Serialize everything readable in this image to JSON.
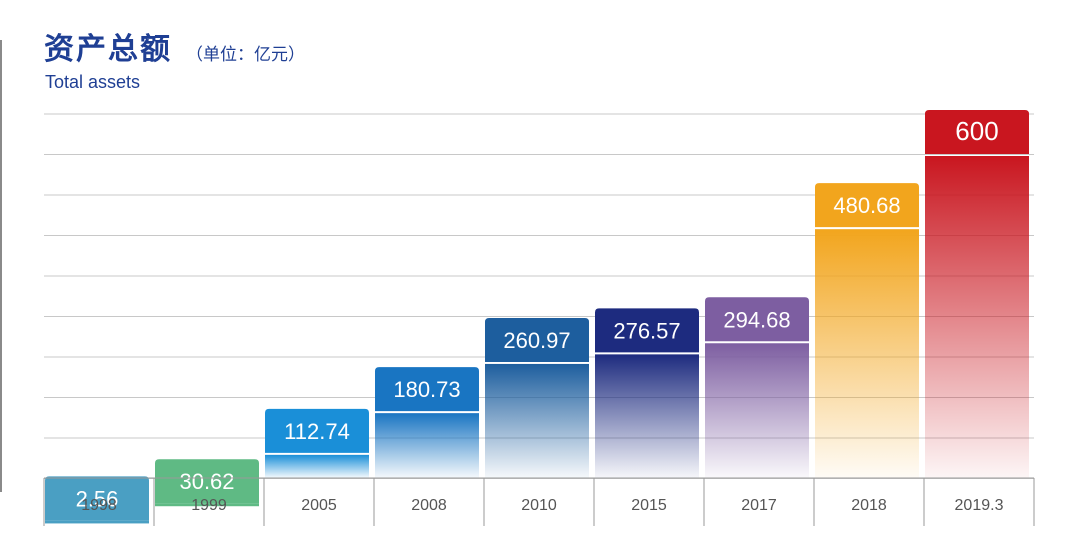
{
  "header": {
    "title": "资产总额",
    "unit": "（单位：亿元）",
    "subtitle": "Total assets"
  },
  "chart_data": {
    "type": "bar",
    "title": "资产总额",
    "subtitle": "Total assets",
    "unit": "（单位：亿元）",
    "categories": [
      "1998",
      "1999",
      "2005",
      "2008",
      "2010",
      "2015",
      "2017",
      "2018",
      "2019.3"
    ],
    "values": [
      2.56,
      30.62,
      112.74,
      180.73,
      260.97,
      276.57,
      294.68,
      480.68,
      600
    ],
    "value_labels": [
      "2.56",
      "30.62",
      "112.74",
      "180.73",
      "260.97",
      "276.57",
      "294.68",
      "480.68",
      "600"
    ],
    "ylim": [
      0,
      600
    ],
    "grid": true,
    "colors": [
      "#4a9fc3",
      "#5fba84",
      "#1a8fd8",
      "#1975c2",
      "#1d5e9e",
      "#1d2b7f",
      "#7d5ea1",
      "#f2a51d",
      "#c9161f"
    ]
  }
}
